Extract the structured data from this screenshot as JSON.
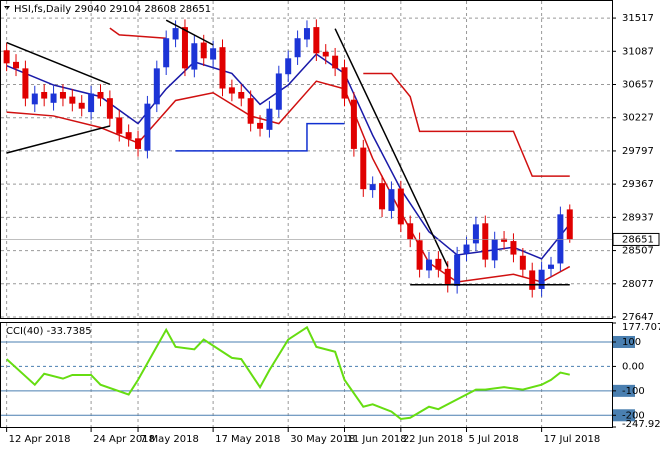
{
  "chart_data": {
    "type": "candlestick",
    "title": "HSI,fs,Daily  29040 29104 28608 28651",
    "xlim": [
      -0.6,
      64.5
    ],
    "xticks": [
      {
        "value": 0,
        "label": "12 Apr 2018"
      },
      {
        "value": 9,
        "label": "24 Apr 2018"
      },
      {
        "value": 14,
        "label": "7 May 2018"
      },
      {
        "value": 22,
        "label": "17 May 2018"
      },
      {
        "value": 30,
        "label": "30 May 2018"
      },
      {
        "value": 36,
        "label": "11 Jun 2018"
      },
      {
        "value": 42,
        "label": "22 Jun 2018"
      },
      {
        "value": 49,
        "label": "5 Jul 2018"
      },
      {
        "value": 57,
        "label": "17 Jul 2018"
      }
    ],
    "ylim": [
      27634,
      31738
    ],
    "yticks": [
      31517,
      31087,
      30657,
      30227,
      29797,
      29367,
      28937,
      28507,
      28077,
      27647
    ],
    "grid": true,
    "up_color": "#1c34d6",
    "down_color": "#e00000",
    "open": [
      31100,
      30950,
      30866,
      30400,
      30560,
      30420,
      30560,
      30500,
      30420,
      30300,
      30560,
      30480,
      30230,
      30040,
      29960,
      29800,
      30400,
      30880,
      31240,
      31400,
      30850,
      31200,
      30980,
      31140,
      30620,
      30560,
      30480,
      30160,
      30070,
      30330,
      30790,
      31010,
      31240,
      31400,
      31080,
      31030,
      30880,
      30460,
      29840,
      29290,
      29380,
      29020,
      29310,
      28860,
      28640,
      28250,
      28400,
      28270,
      28050,
      28470,
      28600,
      28860,
      28380,
      28660,
      28630,
      28440,
      28250,
      28010,
      28270,
      28340,
      29040
    ],
    "high": [
      31200,
      31050,
      30966,
      30640,
      30660,
      30640,
      30660,
      30600,
      30520,
      30640,
      30660,
      30580,
      30330,
      30140,
      30060,
      30509,
      30966,
      31356,
      31487,
      31500,
      31291,
      31300,
      31226,
      31240,
      30720,
      30660,
      30580,
      30260,
      30444,
      30900,
      31096,
      31356,
      31487,
      31500,
      31180,
      31130,
      30980,
      30560,
      29940,
      29467,
      29480,
      29402,
      29410,
      28960,
      28740,
      28490,
      28500,
      28370,
      28555,
      28685,
      28946,
      28960,
      28751,
      28760,
      28730,
      28540,
      28350,
      28359,
      28425,
      29076,
      29104
    ],
    "low": [
      30830,
      30766,
      30375,
      30300,
      30375,
      30320,
      30375,
      30309,
      30244,
      30200,
      30375,
      30114,
      29919,
      29853,
      29723,
      29700,
      30300,
      30780,
      31140,
      30766,
      30750,
      30896,
      30880,
      30505,
      30440,
      30375,
      30049,
      29984,
      29970,
      30230,
      30690,
      30910,
      31140,
      30961,
      30920,
      30766,
      30375,
      29723,
      29202,
      29190,
      28941,
      28920,
      28746,
      28551,
      28159,
      28150,
      28159,
      27964,
      27950,
      28370,
      28500,
      28290,
      28280,
      28520,
      28355,
      28159,
      27899,
      27910,
      28170,
      28240,
      28608
    ],
    "close": [
      30931,
      30866,
      30475,
      30540,
      30475,
      30540,
      30475,
      30409,
      30344,
      30540,
      30475,
      30214,
      30019,
      29953,
      29823,
      30409,
      30866,
      31256,
      31387,
      30866,
      31191,
      30996,
      31126,
      30605,
      30540,
      30475,
      30149,
      30084,
      30344,
      30800,
      30996,
      31256,
      31387,
      31061,
      31020,
      30866,
      30475,
      29823,
      29302,
      29367,
      29041,
      29302,
      28846,
      28651,
      28259,
      28390,
      28259,
      28064,
      28455,
      28585,
      28846,
      28390,
      28651,
      28620,
      28455,
      28259,
      27999,
      28259,
      28325,
      28976,
      28651
    ],
    "overlays": [
      {
        "color": "#1a1aa8",
        "x": [
          0,
          5,
          10,
          14,
          17,
          20,
          24,
          27,
          30,
          33,
          36,
          39,
          42,
          45,
          48,
          51,
          54,
          57,
          60
        ],
        "values": [
          30900,
          30650,
          30500,
          30150,
          30600,
          30950,
          30800,
          30400,
          30650,
          31050,
          30800,
          30000,
          29300,
          28750,
          28450,
          28500,
          28550,
          28400,
          28850
        ]
      },
      {
        "color": "#d01010",
        "x": [
          0,
          5,
          10,
          14,
          18,
          22,
          26,
          29,
          33,
          36,
          39,
          42,
          45,
          48,
          51,
          54,
          57,
          60
        ],
        "values": [
          30300,
          30250,
          30100,
          29900,
          30450,
          30550,
          30250,
          30150,
          30700,
          30600,
          29700,
          29000,
          28350,
          28100,
          28150,
          28200,
          28100,
          28300
        ]
      },
      {
        "color": "#d01010",
        "x": [
          11,
          12,
          17,
          37,
          38,
          41,
          43,
          44,
          54,
          56,
          60
        ],
        "values": [
          31387,
          31300,
          31256,
          null,
          30800,
          30800,
          30500,
          30050,
          30050,
          29470,
          29470
        ]
      },
      {
        "color": "#1030d0",
        "x": [
          18,
          32,
          32,
          36
        ],
        "values": [
          29797,
          29797,
          30150,
          30150
        ]
      }
    ],
    "trendlines": [
      {
        "color": "#000000",
        "x": [
          0,
          11
        ],
        "values": [
          31200,
          30660
        ]
      },
      {
        "color": "#000000",
        "x": [
          0,
          11
        ],
        "values": [
          29770,
          30120
        ]
      },
      {
        "color": "#000000",
        "x": [
          17,
          22
        ],
        "values": [
          31490,
          31170
        ]
      },
      {
        "color": "#000000",
        "x": [
          35,
          47
        ],
        "values": [
          31380,
          28300
        ]
      },
      {
        "color": "#000000",
        "x": [
          43,
          60
        ],
        "values": [
          28064,
          28064
        ]
      }
    ],
    "cci": {
      "title": "CCI(40) -33.7385",
      "color": "#66dd11",
      "level_color": "#4a7fb0",
      "ylim": [
        -247.929,
        177.7073
      ],
      "yticks": [
        177.7073,
        100,
        {
          "value": 0,
          "label": "0.00"
        },
        -100,
        -200,
        -247.929
      ],
      "x": [
        0,
        2,
        3,
        4,
        6,
        7,
        9,
        10,
        13,
        14,
        17,
        18,
        20,
        21,
        24,
        25,
        27,
        28,
        30,
        32,
        33,
        35,
        36,
        38,
        39,
        41,
        42,
        43,
        45,
        46,
        48,
        50,
        51,
        53,
        55,
        57,
        58,
        59,
        60
      ],
      "values": [
        30,
        -40,
        -75,
        -30,
        -50,
        -35,
        -35,
        -75,
        -115,
        -55,
        150,
        80,
        70,
        110,
        35,
        30,
        -85,
        -15,
        110,
        160,
        80,
        60,
        -55,
        -165,
        -155,
        -185,
        -215,
        -210,
        -165,
        -175,
        -135,
        -95,
        -95,
        -85,
        -95,
        -75,
        -55,
        -25,
        -33.7385
      ]
    }
  }
}
